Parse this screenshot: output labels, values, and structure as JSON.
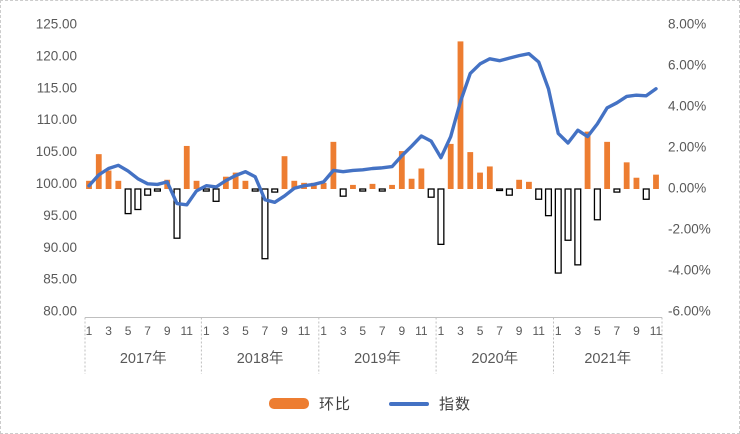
{
  "chart_data": {
    "type": "combo",
    "title": "",
    "categories": [
      "2017-01",
      "2017-02",
      "2017-03",
      "2017-04",
      "2017-05",
      "2017-06",
      "2017-07",
      "2017-08",
      "2017-09",
      "2017-10",
      "2017-11",
      "2017-12",
      "2018-01",
      "2018-02",
      "2018-03",
      "2018-04",
      "2018-05",
      "2018-06",
      "2018-07",
      "2018-08",
      "2018-09",
      "2018-10",
      "2018-11",
      "2018-12",
      "2019-01",
      "2019-02",
      "2019-03",
      "2019-04",
      "2019-05",
      "2019-06",
      "2019-07",
      "2019-08",
      "2019-09",
      "2019-10",
      "2019-11",
      "2019-12",
      "2020-01",
      "2020-02",
      "2020-03",
      "2020-04",
      "2020-05",
      "2020-06",
      "2020-07",
      "2020-08",
      "2020-09",
      "2020-10",
      "2020-11",
      "2020-12",
      "2021-01",
      "2021-02",
      "2021-03",
      "2021-04",
      "2021-05",
      "2021-06",
      "2021-07",
      "2021-08",
      "2021-09",
      "2021-10",
      "2021-11"
    ],
    "series": [
      {
        "name": "环比",
        "type": "bar",
        "axis": "right",
        "unit": "%",
        "color": "#ED7D31",
        "negative_style": {
          "fill": "#FFFFFF",
          "stroke": "#000000"
        },
        "values": [
          0.4,
          1.7,
          0.9,
          0.4,
          -1.2,
          -1.0,
          -0.3,
          -0.1,
          0.45,
          -2.4,
          2.1,
          0.4,
          -0.1,
          -0.6,
          0.6,
          0.8,
          0.4,
          -0.1,
          -3.4,
          -0.15,
          1.6,
          0.4,
          0.3,
          0.3,
          0.3,
          2.3,
          -0.35,
          0.2,
          -0.1,
          0.25,
          -0.1,
          0.2,
          1.85,
          0.5,
          1.0,
          -0.4,
          -2.7,
          2.2,
          7.2,
          1.8,
          0.8,
          1.1,
          -0.05,
          -0.3,
          0.45,
          0.35,
          -0.5,
          -1.3,
          -4.1,
          -2.5,
          -3.7,
          2.8,
          -1.5,
          2.3,
          -0.15,
          1.3,
          0.55,
          -0.5,
          0.7
        ]
      },
      {
        "name": "指数",
        "type": "line",
        "axis": "left",
        "color": "#4472C4",
        "values": [
          99.8,
          101.5,
          102.5,
          103.0,
          102.1,
          100.9,
          100.1,
          100.0,
          100.4,
          97.0,
          96.8,
          99.0,
          99.8,
          99.6,
          100.6,
          101.4,
          102.0,
          101.2,
          97.6,
          97.2,
          98.2,
          99.4,
          99.8,
          100.0,
          100.4,
          102.2,
          102.0,
          102.2,
          102.3,
          102.5,
          102.6,
          102.8,
          104.5,
          106.0,
          107.6,
          106.8,
          104.2,
          107.5,
          113.0,
          117.4,
          118.9,
          119.7,
          119.4,
          119.8,
          120.2,
          120.5,
          119.2,
          115.0,
          108.0,
          106.5,
          108.5,
          107.5,
          109.5,
          112.0,
          112.8,
          113.8,
          114.0,
          113.9,
          115.0
        ]
      }
    ],
    "left_axis": {
      "min": 80,
      "max": 125,
      "step": 5,
      "tick_labels": [
        "125.00",
        "120.00",
        "115.00",
        "110.00",
        "105.00",
        "100.00",
        "95.00",
        "90.00",
        "85.00",
        "80.00"
      ]
    },
    "right_axis": {
      "min": -6,
      "max": 8,
      "step": 2,
      "tick_labels": [
        "8.00%",
        "6.00%",
        "4.00%",
        "2.00%",
        "0.00%",
        "-2.00%",
        "-4.00%",
        "-6.00%"
      ]
    },
    "x_axis": {
      "years": [
        "2017年",
        "2018年",
        "2019年",
        "2020年",
        "2021年"
      ],
      "month_tick_labels": [
        "1",
        "3",
        "5",
        "7",
        "9",
        "11"
      ],
      "months_in_last_year": 11
    },
    "grid": false,
    "legend": {
      "position": "bottom",
      "items": [
        {
          "label": "环比",
          "swatch": "bar",
          "color": "#ED7D31"
        },
        {
          "label": "指数",
          "swatch": "line",
          "color": "#4472C4"
        }
      ]
    },
    "text_color": "#595959",
    "axis_line_color": "#BFBFBF"
  }
}
